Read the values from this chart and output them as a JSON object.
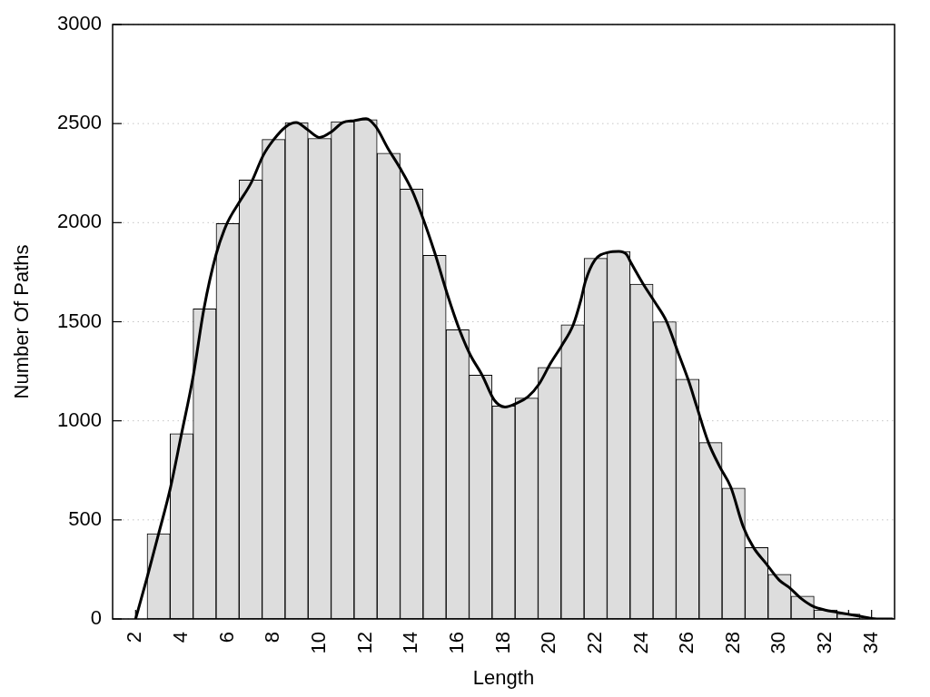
{
  "chart_data": {
    "type": "histogram",
    "xlabel": "Length",
    "ylabel": "Number Of Paths",
    "bins": [
      2.5,
      3.5,
      4.5,
      5.5,
      6.5,
      7.5,
      8.5,
      9.5,
      10.5,
      11.5,
      12.5,
      13.5,
      14.5,
      15.5,
      16.5,
      17.5,
      18.5,
      19.5,
      20.5,
      21.5,
      22.5,
      23.5,
      24.5,
      25.5,
      26.5,
      27.5,
      28.5,
      29.5,
      30.5,
      31.5,
      32.5,
      33.5
    ],
    "series": [
      {
        "color": "#dddddd",
        "values": [
          430,
          935,
          1565,
          1995,
          2215,
          2420,
          2505,
          2425,
          2510,
          2520,
          2350,
          2170,
          1835,
          1460,
          1230,
          1075,
          1115,
          1270,
          1485,
          1820,
          1855,
          1690,
          1500,
          1210,
          890,
          660,
          360,
          225,
          115,
          45,
          25
        ]
      },
      {
        "type": "line",
        "color": "#000000",
        "x": [
          2,
          2.49,
          2.99,
          3.52,
          3.98,
          4.51,
          4.97,
          5.5,
          5.97,
          6.49,
          7.02,
          7.55,
          8.01,
          8.54,
          8.98,
          9.47,
          10,
          10.53,
          11,
          11.52,
          12.02,
          12.44,
          12.97,
          13.5,
          14.03,
          14.5,
          15,
          15.55,
          16.08,
          16.54,
          17.07,
          17.59,
          18.06,
          18.58,
          19.05,
          19.54,
          20.04,
          20.53,
          21.03,
          21.36,
          21.56,
          21.96,
          22.55,
          23.01,
          23.34,
          23.55,
          24.07,
          24.6,
          25.07,
          25.57,
          26.05,
          26.39,
          26.89,
          27.39,
          27.88,
          28.42,
          28.87,
          29.41,
          29.99,
          30.41,
          30.92,
          31.44,
          31.98,
          32.44,
          33.43,
          34.22,
          34.9
        ],
        "values": [
          0,
          205,
          425,
          665,
          925,
          1230,
          1565,
          1840,
          1995,
          2100,
          2200,
          2340,
          2420,
          2485,
          2505,
          2470,
          2430,
          2460,
          2505,
          2515,
          2525,
          2485,
          2375,
          2275,
          2160,
          2020,
          1850,
          1640,
          1460,
          1335,
          1230,
          1105,
          1070,
          1090,
          1120,
          1185,
          1290,
          1380,
          1485,
          1610,
          1705,
          1810,
          1850,
          1855,
          1840,
          1795,
          1690,
          1595,
          1505,
          1350,
          1200,
          1075,
          895,
          770,
          665,
          465,
          360,
          280,
          195,
          160,
          105,
          65,
          45,
          35,
          15,
          0,
          0
        ]
      }
    ],
    "xlim": [
      1,
      35
    ],
    "xticks": [
      2,
      {
        "value": 3,
        "label": null
      },
      4,
      {
        "value": 5,
        "label": null
      },
      6,
      {
        "value": 7,
        "label": null
      },
      8,
      {
        "value": 9,
        "label": null
      },
      10,
      {
        "value": 11,
        "label": null
      },
      12,
      {
        "value": 13,
        "label": null
      },
      14,
      {
        "value": 15,
        "label": null
      },
      16,
      {
        "value": 17,
        "label": null
      },
      18,
      {
        "value": 19,
        "label": null
      },
      20,
      {
        "value": 21,
        "label": null
      },
      22,
      {
        "value": 23,
        "label": null
      },
      24,
      {
        "value": 25,
        "label": null
      },
      26,
      {
        "value": 27,
        "label": null
      },
      28,
      {
        "value": 29,
        "label": null
      },
      30,
      {
        "value": 31,
        "label": null
      },
      32,
      {
        "value": 33,
        "label": null
      },
      34
    ],
    "ylim": [
      0,
      3000
    ],
    "yticks": [
      0,
      500,
      1000,
      1500,
      2000,
      2500,
      3000
    ],
    "grid": "y",
    "marker": "none"
  }
}
